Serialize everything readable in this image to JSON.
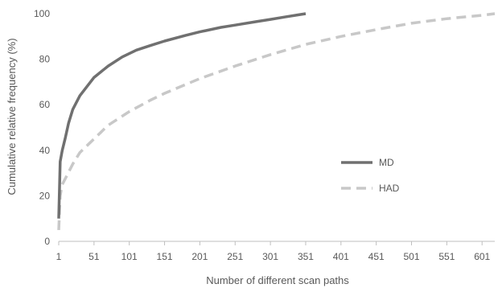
{
  "chart_data": {
    "type": "line",
    "title": "",
    "xlabel": "Number of different scan paths",
    "ylabel": "Cumulative relative frequency (%)",
    "xlim": [
      1,
      619
    ],
    "ylim": [
      0,
      100
    ],
    "x_ticks": [
      1,
      51,
      101,
      151,
      201,
      251,
      301,
      351,
      401,
      451,
      501,
      551,
      601
    ],
    "y_ticks": [
      0,
      20,
      40,
      60,
      80,
      100
    ],
    "grid": false,
    "legend_position": "right",
    "series": [
      {
        "name": "MD",
        "color": "#707070",
        "style": "solid",
        "x": [
          1,
          3,
          6,
          10,
          15,
          21,
          31,
          41,
          51,
          71,
          91,
          111,
          131,
          151,
          181,
          201,
          231,
          251,
          281,
          301,
          321,
          341,
          351
        ],
        "y": [
          10,
          35,
          40,
          45,
          52,
          58,
          64,
          68,
          72,
          77,
          81,
          84,
          86,
          88,
          90.5,
          92,
          94,
          95,
          96.5,
          97.5,
          98.5,
          99.5,
          100
        ]
      },
      {
        "name": "HAD",
        "color": "#c8c8c8",
        "style": "dashed",
        "x": [
          1,
          3,
          6,
          11,
          21,
          31,
          51,
          71,
          101,
          131,
          151,
          201,
          251,
          301,
          351,
          401,
          451,
          501,
          551,
          601,
          619
        ],
        "y": [
          5,
          20,
          25,
          28,
          34,
          39,
          45,
          51,
          57,
          62,
          65,
          71.5,
          77,
          82,
          86.5,
          90,
          93,
          95.8,
          97.8,
          99.3,
          100
        ]
      }
    ]
  }
}
